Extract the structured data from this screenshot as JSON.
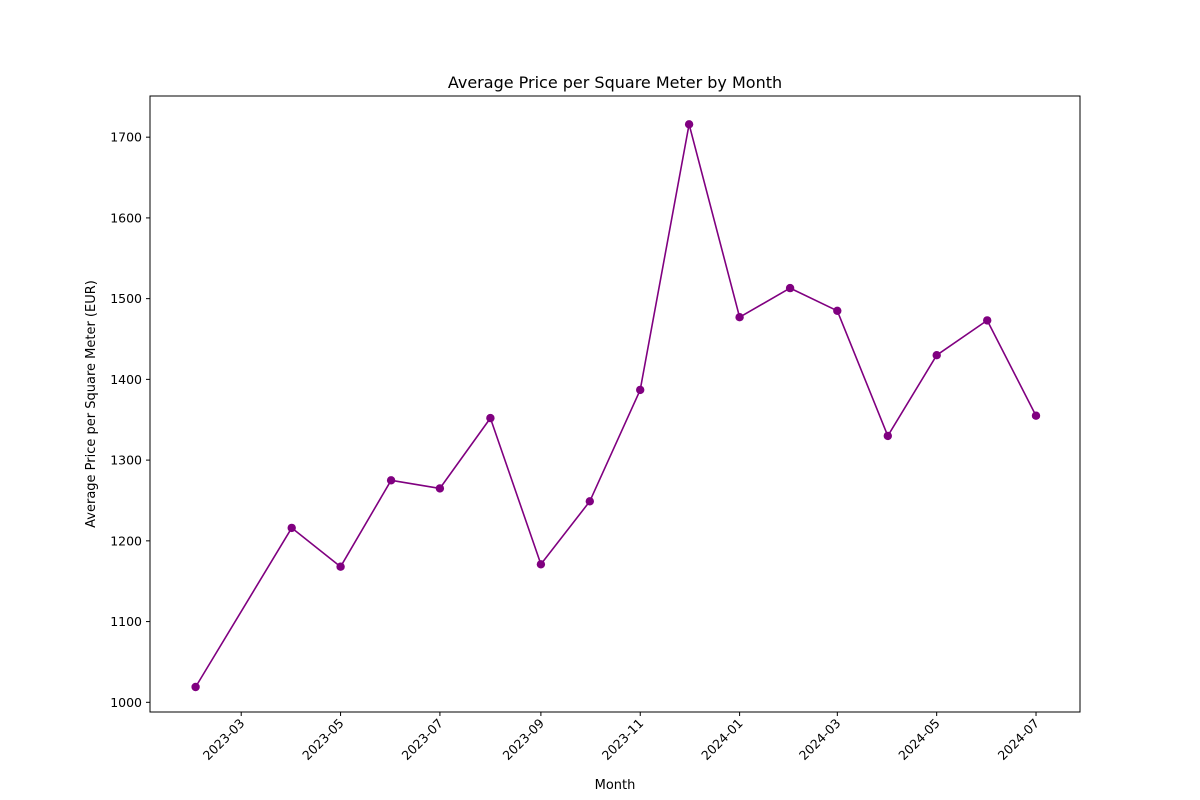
{
  "chart_data": {
    "type": "line",
    "title": "Average Price per Square Meter by Month",
    "xlabel": "Month",
    "ylabel": "Average Price per Square Meter (EUR)",
    "x": [
      "2023-02-01",
      "2023-04-01",
      "2023-05-01",
      "2023-06-01",
      "2023-07-01",
      "2023-08-01",
      "2023-09-01",
      "2023-10-01",
      "2023-11-01",
      "2023-12-01",
      "2024-01-01",
      "2024-02-01",
      "2024-03-01",
      "2024-04-01",
      "2024-05-01",
      "2024-06-01",
      "2024-07-01"
    ],
    "series": [
      {
        "values": [
          1019,
          1216,
          1168,
          1275,
          1265,
          1352,
          1171,
          1249,
          1387,
          1716,
          1477,
          1513,
          1485,
          1330,
          1430,
          1473,
          1355
        ]
      }
    ],
    "xticks": [
      "2023-03",
      "2023-05",
      "2023-07",
      "2023-09",
      "2023-11",
      "2024-01",
      "2024-03",
      "2024-05",
      "2024-07"
    ],
    "yticks": [
      1000,
      1100,
      1200,
      1300,
      1400,
      1500,
      1600,
      1700
    ],
    "ylim": [
      988,
      1751
    ],
    "xlim": [
      "2023-01-04",
      "2024-07-28"
    ],
    "grid": false,
    "colors": {
      "series": "#800080",
      "axes": "#000000",
      "background": "#ffffff"
    }
  }
}
